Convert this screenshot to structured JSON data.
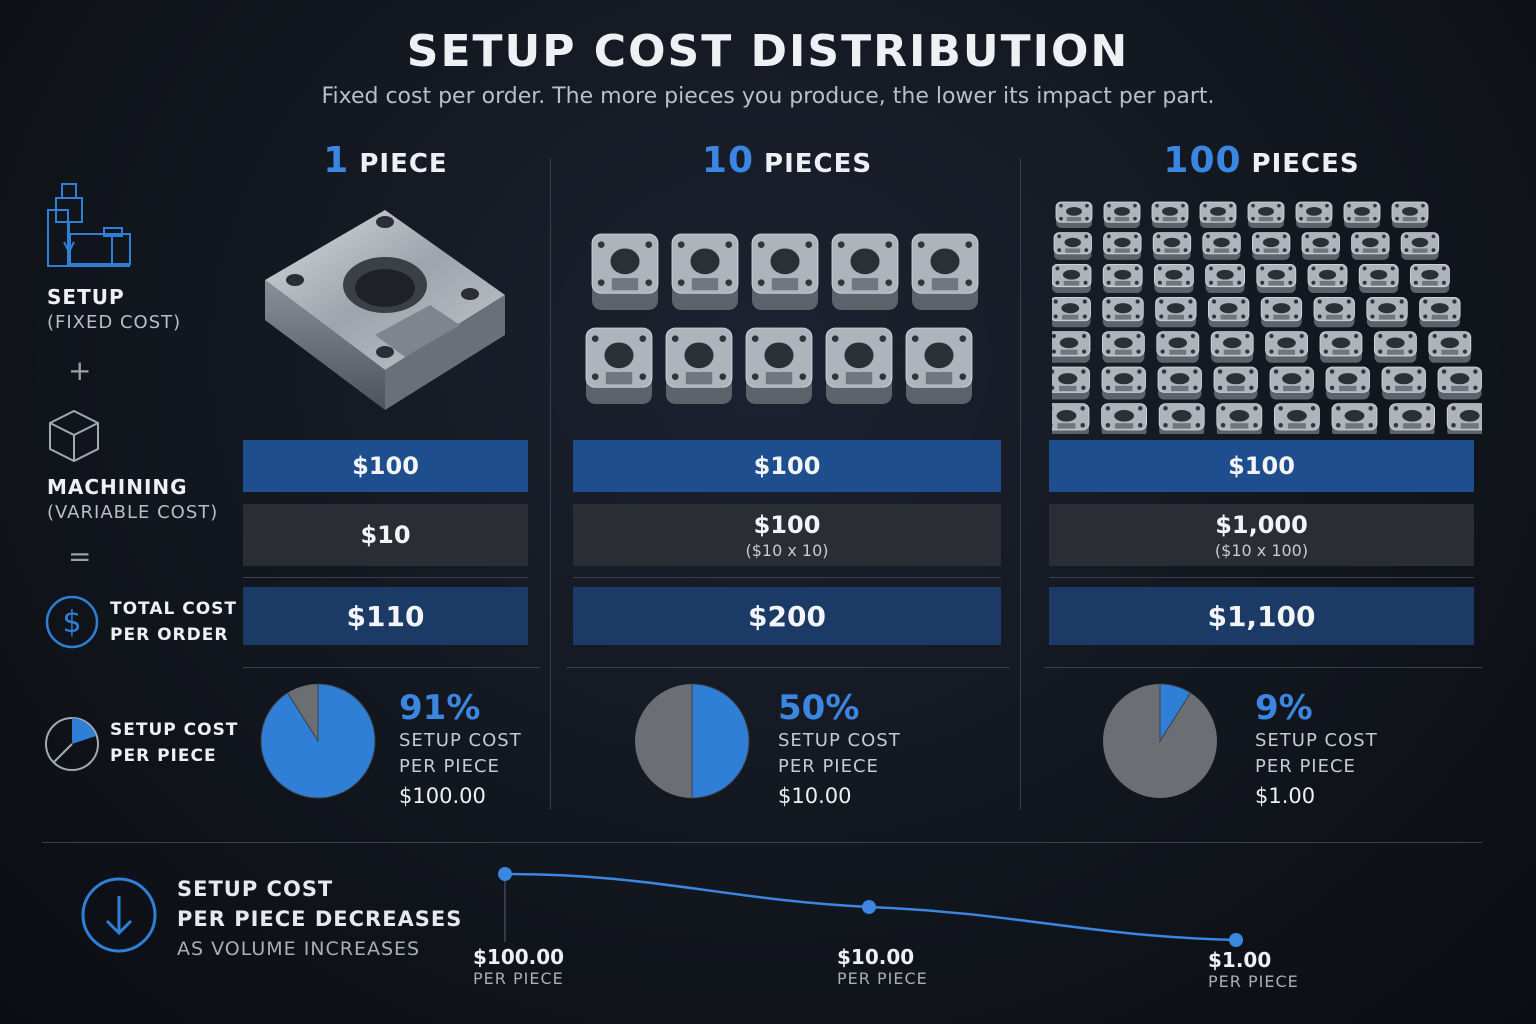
{
  "header": {
    "title": "SETUP COST DISTRIBUTION",
    "subtitle": "Fixed cost per order. The more pieces you produce, the lower its impact per part."
  },
  "legend": {
    "setup_title": "SETUP",
    "setup_sub": "(FIXED COST)",
    "plus": "+",
    "machining_title": "MACHINING",
    "machining_sub": "(VARIABLE COST)",
    "equals": "=",
    "total_line1": "TOTAL COST",
    "total_line2": "PER ORDER",
    "per_piece_line1": "SETUP COST",
    "per_piece_line2": "PER PIECE",
    "icons": [
      "cnc-machine-icon",
      "cube-icon",
      "dollar-icon",
      "pie-icon"
    ],
    "accent_color": "#3a86e0"
  },
  "columns": [
    {
      "qty": "1",
      "unit": "PIECE",
      "setup": "$100",
      "machining": "$10",
      "machining_note": "",
      "total": "$110",
      "percent": "91%",
      "label1": "SETUP COST",
      "label2": "PER PIECE",
      "per_piece": "$100.00"
    },
    {
      "qty": "10",
      "unit": "PIECES",
      "setup": "$100",
      "machining": "$100",
      "machining_note": "($10 x 10)",
      "total": "$200",
      "percent": "50%",
      "label1": "SETUP COST",
      "label2": "PER PIECE",
      "per_piece": "$10.00"
    },
    {
      "qty": "100",
      "unit": "PIECES",
      "setup": "$100",
      "machining": "$1,000",
      "machining_note": "($10 x 100)",
      "total": "$1,100",
      "percent": "9%",
      "label1": "SETUP COST",
      "label2": "PER PIECE",
      "per_piece": "$1.00"
    }
  ],
  "bottom": {
    "line1": "SETUP COST",
    "line2": "PER PIECE DECREASES",
    "line3": "AS VOLUME INCREASES",
    "icon": "arrow-down-circle-icon",
    "points": [
      {
        "value": "$100.00",
        "unit": "PER PIECE"
      },
      {
        "value": "$10.00",
        "unit": "PER PIECE"
      },
      {
        "value": "$1.00",
        "unit": "PER PIECE"
      }
    ]
  },
  "chart_data": [
    {
      "type": "pie",
      "title": "1 PIECE",
      "slices": [
        {
          "label": "Setup",
          "value": 91,
          "color": "#2f7fd6"
        },
        {
          "label": "Machining",
          "value": 9,
          "color": "#6b6e73"
        }
      ]
    },
    {
      "type": "pie",
      "title": "10 PIECES",
      "slices": [
        {
          "label": "Setup",
          "value": 50,
          "color": "#2f7fd6"
        },
        {
          "label": "Machining",
          "value": 50,
          "color": "#6b6e73"
        }
      ]
    },
    {
      "type": "pie",
      "title": "100 PIECES",
      "slices": [
        {
          "label": "Setup",
          "value": 9,
          "color": "#2f7fd6"
        },
        {
          "label": "Machining",
          "value": 91,
          "color": "#6b6e73"
        }
      ]
    },
    {
      "type": "line",
      "categories": [
        "1 PIECE",
        "10 PIECES",
        "100 PIECES"
      ],
      "series": [
        {
          "values": [
            100,
            10,
            1
          ]
        }
      ],
      "ylabel": "PER PIECE",
      "scale": "log",
      "line_color": "#3a86e0"
    }
  ]
}
